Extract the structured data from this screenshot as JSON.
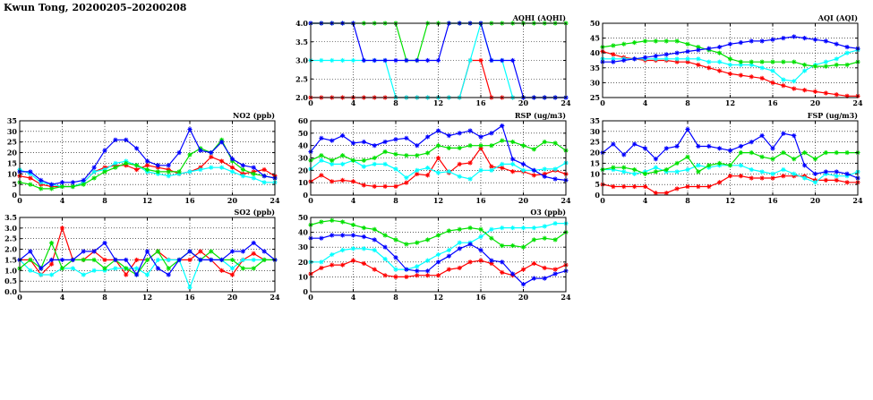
{
  "page_title": "Kwun Tong, 20200205–20200208",
  "colors": {
    "red": "#ff0000",
    "cyan": "#00ffff",
    "green": "#00e000",
    "blue": "#0000ff"
  },
  "chart_data": [
    {
      "id": "aqhi",
      "type": "line",
      "title": "AQHI (AQHI)",
      "xlim": [
        0,
        24
      ],
      "xticks": [
        0,
        4,
        8,
        12,
        16,
        20,
        24
      ],
      "ylim": [
        2,
        4
      ],
      "yticks": [
        "2.0",
        "2.5",
        "3.0",
        "3.5",
        "4.0"
      ],
      "grid": true,
      "series": [
        {
          "color": "red",
          "values": [
            2,
            2,
            2,
            2,
            2,
            2,
            2,
            2,
            2,
            2,
            2,
            2,
            2,
            2,
            2,
            3,
            3,
            2,
            2,
            2,
            2,
            2,
            2,
            2,
            2
          ]
        },
        {
          "color": "cyan",
          "values": [
            3,
            3,
            3,
            3,
            3,
            3,
            3,
            3,
            2,
            2,
            2,
            2,
            2,
            2,
            2,
            3,
            4,
            3,
            3,
            2,
            2,
            2,
            2,
            2,
            2
          ]
        },
        {
          "color": "green",
          "values": [
            4,
            4,
            4,
            4,
            4,
            4,
            4,
            4,
            4,
            3,
            3,
            4,
            4,
            4,
            4,
            4,
            4,
            4,
            4,
            4,
            4,
            4,
            4,
            4,
            4
          ]
        },
        {
          "color": "blue",
          "values": [
            4,
            4,
            4,
            4,
            4,
            3,
            3,
            3,
            3,
            3,
            3,
            3,
            3,
            4,
            4,
            4,
            4,
            3,
            3,
            3,
            2,
            2,
            2,
            2,
            2
          ]
        }
      ]
    },
    {
      "id": "aqi",
      "type": "line",
      "title": "AQI (AQI)",
      "xlim": [
        0,
        24
      ],
      "xticks": [
        0,
        4,
        8,
        12,
        16,
        20,
        24
      ],
      "ylim": [
        25,
        50
      ],
      "yticks": [
        "25",
        "30",
        "35",
        "40",
        "45",
        "50"
      ],
      "grid": true,
      "series": [
        {
          "color": "red",
          "values": [
            40.5,
            39.5,
            38.5,
            38,
            37.5,
            37.5,
            37.5,
            37,
            37,
            36,
            35,
            34,
            33,
            32.5,
            32,
            31.5,
            30,
            29,
            28,
            27.5,
            27,
            26.5,
            26,
            25.5,
            25.5
          ]
        },
        {
          "color": "cyan",
          "values": [
            38,
            38,
            38,
            38,
            38,
            38,
            38,
            38,
            38,
            38,
            37,
            37,
            36,
            36,
            36,
            35,
            34,
            31,
            30.5,
            34,
            36,
            37,
            38,
            40,
            41
          ]
        },
        {
          "color": "green",
          "values": [
            42,
            42.5,
            43,
            43.5,
            44,
            44,
            44,
            44,
            43,
            42,
            41,
            40,
            38,
            37,
            37,
            37,
            37,
            37,
            37,
            36,
            35.5,
            35.5,
            36,
            36,
            37
          ]
        },
        {
          "color": "blue",
          "values": [
            37,
            37,
            37.5,
            38,
            38.5,
            39,
            39.5,
            40,
            40.5,
            41,
            41.5,
            42,
            43,
            43.5,
            44,
            44,
            44.5,
            45,
            45.5,
            45,
            44.5,
            44,
            43,
            42,
            41.5
          ]
        }
      ]
    },
    {
      "id": "no2",
      "type": "line",
      "title": "NO2 (ppb)",
      "xlim": [
        0,
        24
      ],
      "xticks": [
        0,
        4,
        8,
        12,
        16,
        20,
        24
      ],
      "ylim": [
        0,
        35
      ],
      "yticks": [
        "0",
        "5",
        "10",
        "15",
        "20",
        "25",
        "30",
        "35"
      ],
      "grid": true,
      "series": [
        {
          "color": "red",
          "values": [
            9,
            8,
            5,
            4,
            4,
            4,
            6,
            11,
            13,
            14,
            14,
            12,
            14,
            13,
            12,
            10,
            11,
            13,
            18,
            16,
            13,
            10,
            11,
            12,
            9
          ]
        },
        {
          "color": "cyan",
          "values": [
            12,
            10,
            6,
            5,
            4,
            4,
            6,
            11,
            12,
            15,
            16,
            14,
            11,
            10,
            9,
            10,
            11,
            12,
            13,
            13,
            11,
            9,
            8,
            6,
            6
          ]
        },
        {
          "color": "green",
          "values": [
            6,
            5,
            3,
            3,
            4,
            4,
            5,
            8,
            11,
            13,
            15,
            14,
            12,
            11,
            11,
            11,
            19,
            22,
            20,
            26,
            16,
            12,
            10,
            9,
            8
          ]
        },
        {
          "color": "blue",
          "values": [
            11,
            11,
            7,
            5,
            6,
            6,
            7,
            13,
            21,
            26,
            26,
            22,
            16,
            14,
            14,
            20,
            31,
            21,
            20,
            25,
            17,
            14,
            13,
            9,
            8
          ]
        }
      ]
    },
    {
      "id": "rsp",
      "type": "line",
      "title": "RSP (ug/m3)",
      "xlim": [
        0,
        24
      ],
      "xticks": [
        0,
        4,
        8,
        12,
        16,
        20,
        24
      ],
      "ylim": [
        0,
        60
      ],
      "yticks": [
        "0",
        "10",
        "20",
        "30",
        "40",
        "50",
        "60"
      ],
      "grid": true,
      "series": [
        {
          "color": "red",
          "values": [
            11,
            16,
            11,
            12,
            11,
            8,
            7,
            7,
            7,
            10,
            17,
            16,
            30,
            18,
            25,
            26,
            38,
            23,
            22,
            19,
            19,
            16,
            17,
            20,
            17
          ]
        },
        {
          "color": "cyan",
          "values": [
            21,
            28,
            25,
            25,
            28,
            23,
            25,
            25,
            21,
            14,
            20,
            22,
            18,
            19,
            15,
            13,
            20,
            20,
            25,
            25,
            20,
            20,
            21,
            21,
            26
          ]
        },
        {
          "color": "green",
          "values": [
            28,
            32,
            28,
            32,
            28,
            28,
            30,
            35,
            33,
            32,
            32,
            34,
            40,
            38,
            38,
            40,
            40,
            40,
            44,
            43,
            40,
            37,
            43,
            42,
            36
          ]
        },
        {
          "color": "blue",
          "values": [
            35,
            46,
            44,
            48,
            42,
            43,
            40,
            43,
            45,
            46,
            40,
            47,
            52,
            48,
            50,
            52,
            47,
            50,
            56,
            29,
            25,
            20,
            15,
            13,
            12
          ]
        }
      ]
    },
    {
      "id": "fsp",
      "type": "line",
      "title": "FSP (ug/m3)",
      "xlim": [
        0,
        24
      ],
      "xticks": [
        0,
        4,
        8,
        12,
        16,
        20,
        24
      ],
      "ylim": [
        0,
        35
      ],
      "yticks": [
        "0",
        "5",
        "10",
        "15",
        "20",
        "25",
        "30",
        "35"
      ],
      "grid": true,
      "series": [
        {
          "color": "red",
          "values": [
            5,
            4,
            4,
            4,
            4,
            1,
            1,
            3,
            4,
            4,
            4,
            6,
            9,
            9,
            8,
            8,
            8,
            9,
            9,
            9,
            7,
            7,
            7,
            6,
            6
          ]
        },
        {
          "color": "cyan",
          "values": [
            12,
            12,
            11,
            10,
            11,
            13,
            11,
            11,
            12,
            14,
            13,
            14,
            14,
            14,
            12,
            11,
            10,
            12,
            10,
            8,
            6,
            10,
            9,
            9,
            11
          ]
        },
        {
          "color": "green",
          "values": [
            12,
            13,
            13,
            12,
            10,
            11,
            12,
            15,
            18,
            11,
            14,
            15,
            14,
            20,
            20,
            18,
            17,
            20,
            17,
            20,
            17,
            20,
            20,
            20,
            20
          ]
        },
        {
          "color": "blue",
          "values": [
            20,
            24,
            19,
            24,
            22,
            17,
            22,
            23,
            31,
            23,
            23,
            22,
            21,
            23,
            25,
            28,
            22,
            29,
            28,
            14,
            10,
            11,
            11,
            10,
            8
          ]
        }
      ]
    },
    {
      "id": "so2",
      "type": "line",
      "title": "SO2 (ppb)",
      "xlim": [
        0,
        24
      ],
      "xticks": [
        0,
        4,
        8,
        12,
        16,
        20,
        24
      ],
      "ylim": [
        0,
        3.5
      ],
      "yticks": [
        "0.0",
        "0.5",
        "1.0",
        "1.5",
        "2.0",
        "2.5",
        "3.0",
        "3.5"
      ],
      "grid": true,
      "series": [
        {
          "color": "red",
          "values": [
            1.5,
            1.5,
            0.8,
            1.3,
            3.0,
            1.5,
            1.5,
            1.9,
            1.5,
            1.5,
            0.8,
            1.5,
            1.5,
            1.9,
            1.5,
            1.5,
            1.5,
            1.9,
            1.5,
            1.0,
            0.8,
            1.5,
            1.8,
            1.5,
            1.5
          ]
        },
        {
          "color": "cyan",
          "values": [
            1.5,
            1.0,
            0.8,
            0.8,
            1.1,
            1.1,
            0.8,
            1.0,
            1.0,
            1.1,
            1.1,
            1.1,
            0.8,
            1.5,
            1.5,
            1.5,
            0.2,
            1.5,
            1.5,
            1.5,
            1.1,
            1.5,
            1.5,
            1.5,
            1.5
          ]
        },
        {
          "color": "green",
          "values": [
            1.1,
            1.5,
            1.1,
            2.3,
            1.1,
            1.5,
            1.5,
            1.5,
            1.1,
            1.5,
            1.1,
            0.8,
            1.5,
            1.9,
            1.1,
            1.5,
            1.9,
            1.5,
            1.9,
            1.5,
            1.5,
            1.1,
            1.1,
            1.5,
            1.5
          ]
        },
        {
          "color": "blue",
          "values": [
            1.5,
            1.9,
            1.1,
            1.5,
            1.5,
            1.5,
            1.9,
            1.9,
            2.3,
            1.5,
            1.5,
            0.8,
            1.9,
            1.1,
            0.8,
            1.5,
            1.9,
            1.5,
            1.5,
            1.5,
            1.9,
            1.9,
            2.3,
            1.9,
            1.5
          ]
        }
      ]
    },
    {
      "id": "o3",
      "type": "line",
      "title": "O3 (ppb)",
      "xlim": [
        0,
        24
      ],
      "xticks": [
        0,
        4,
        8,
        12,
        16,
        20,
        24
      ],
      "ylim": [
        0,
        50
      ],
      "yticks": [
        "0",
        "10",
        "20",
        "30",
        "40",
        "50"
      ],
      "grid": true,
      "series": [
        {
          "color": "red",
          "values": [
            12,
            16,
            18,
            18,
            21,
            19,
            15,
            11,
            10,
            10,
            11,
            11,
            11,
            15,
            16,
            20,
            21,
            19,
            13,
            11,
            15,
            19,
            16,
            15,
            18
          ]
        },
        {
          "color": "cyan",
          "values": [
            20,
            20,
            25,
            28,
            29,
            29,
            28,
            22,
            15,
            15,
            17,
            21,
            25,
            28,
            33,
            33,
            37,
            42,
            43,
            43,
            43,
            43,
            44,
            46,
            46
          ]
        },
        {
          "color": "green",
          "values": [
            45,
            47,
            48,
            47,
            45,
            43,
            42,
            38,
            35,
            32,
            33,
            35,
            38,
            41,
            42,
            43,
            42,
            36,
            31,
            31,
            30,
            35,
            36,
            35,
            40
          ]
        },
        {
          "color": "blue",
          "values": [
            36,
            36,
            38,
            38,
            38,
            37,
            35,
            30,
            23,
            15,
            14,
            14,
            20,
            24,
            29,
            32,
            28,
            21,
            20,
            12,
            5,
            9,
            9,
            12,
            14
          ]
        }
      ]
    }
  ]
}
